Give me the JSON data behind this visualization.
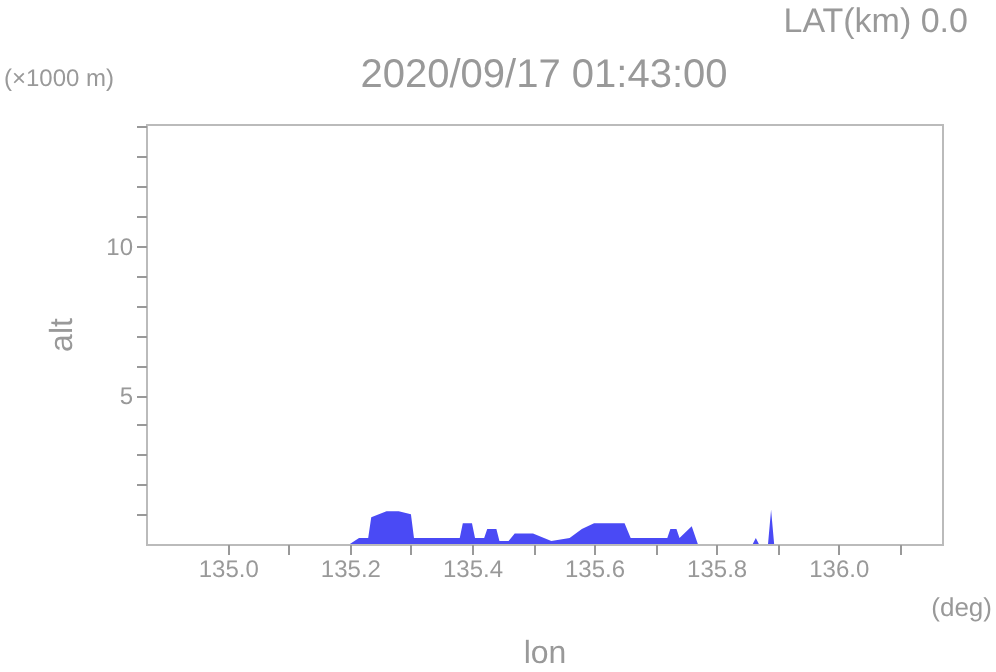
{
  "chart_data": {
    "type": "area",
    "title": "2020/09/17 01:43:00",
    "xlabel": "lon",
    "ylabel": "alt",
    "annotations": [
      "LAT(km) 0.0",
      "(×1000 m)",
      "(deg)"
    ],
    "x": [
      135.2,
      135.215,
      135.23,
      135.235,
      135.26,
      135.28,
      135.3,
      135.305,
      135.38,
      135.385,
      135.4,
      135.405,
      135.42,
      135.425,
      135.44,
      135.445,
      135.46,
      135.47,
      135.5,
      135.53,
      135.56,
      135.58,
      135.6,
      135.65,
      135.66,
      135.72,
      135.725,
      135.735,
      135.74,
      135.76,
      135.77,
      135.86,
      135.865,
      135.87,
      135.885,
      135.89,
      135.895
    ],
    "series": [
      {
        "color": "#4a4af5",
        "values": [
          0,
          0.2,
          0.2,
          0.9,
          1.1,
          1.1,
          1.0,
          0.2,
          0.2,
          0.7,
          0.7,
          0.2,
          0.2,
          0.5,
          0.5,
          0.1,
          0.1,
          0.35,
          0.35,
          0.1,
          0.2,
          0.5,
          0.7,
          0.7,
          0.2,
          0.2,
          0.5,
          0.5,
          0.2,
          0.6,
          0,
          0,
          0.2,
          0,
          0,
          1.15,
          0
        ]
      }
    ],
    "xlim": [
      134.866,
      136.17
    ],
    "xticks": [
      {
        "value": 135.0,
        "label": "135.0"
      },
      {
        "value": 135.1,
        "label": null
      },
      {
        "value": 135.2,
        "label": "135.2"
      },
      {
        "value": 135.3,
        "label": null
      },
      {
        "value": 135.4,
        "label": "135.4"
      },
      {
        "value": 135.5,
        "label": null
      },
      {
        "value": 135.6,
        "label": "135.6"
      },
      {
        "value": 135.7,
        "label": null
      },
      {
        "value": 135.8,
        "label": "135.8"
      },
      {
        "value": 135.9,
        "label": null
      },
      {
        "value": 136.0,
        "label": "136.0"
      },
      {
        "value": 136.1,
        "label": null
      }
    ],
    "ylim": [
      0,
      14.1
    ],
    "yticks": [
      {
        "value": 1,
        "label": null
      },
      {
        "value": 2,
        "label": null
      },
      {
        "value": 3,
        "label": null
      },
      {
        "value": 4,
        "label": null
      },
      5,
      {
        "value": 6,
        "label": null
      },
      {
        "value": 7,
        "label": null
      },
      {
        "value": 8,
        "label": null
      },
      {
        "value": 9,
        "label": null
      },
      10,
      {
        "value": 11,
        "label": null
      },
      {
        "value": 12,
        "label": null
      },
      {
        "value": 13,
        "label": null
      },
      {
        "value": 14,
        "label": null
      }
    ],
    "grid": false
  }
}
